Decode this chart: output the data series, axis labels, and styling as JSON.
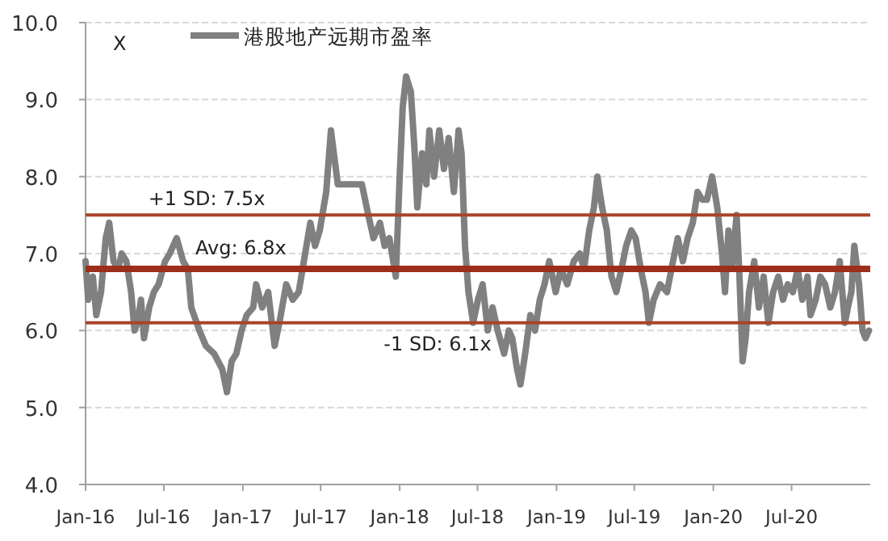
{
  "chart_data": {
    "type": "line",
    "ylabel": "X",
    "ylim": [
      4,
      10
    ],
    "yticks": [
      {
        "value": 4,
        "label": "4.0"
      },
      {
        "value": 5,
        "label": "5.0"
      },
      {
        "value": 6,
        "label": "6.0"
      },
      {
        "value": 7,
        "label": "7.0"
      },
      {
        "value": 8,
        "label": "8.0"
      },
      {
        "value": 9,
        "label": "9.0"
      },
      {
        "value": 10,
        "label": "10.0"
      }
    ],
    "xlim": [
      "2016-01-01",
      "2020-12-31"
    ],
    "xticks": [
      {
        "value": "2016-01-01",
        "label": "Jan-16"
      },
      {
        "value": "2016-07-01",
        "label": "Jul-16"
      },
      {
        "value": "2017-01-01",
        "label": "Jan-17"
      },
      {
        "value": "2017-07-01",
        "label": "Jul-17"
      },
      {
        "value": "2018-01-01",
        "label": "Jan-18"
      },
      {
        "value": "2018-07-01",
        "label": "Jul-18"
      },
      {
        "value": "2019-01-01",
        "label": "Jan-19"
      },
      {
        "value": "2019-07-01",
        "label": "Jul-19"
      },
      {
        "value": "2020-01-01",
        "label": "Jan-20"
      },
      {
        "value": "2020-07-01",
        "label": "Jul-20"
      }
    ],
    "grid": "y",
    "legend": "top",
    "marker": "none",
    "line_style": "solid",
    "ref_lines": [
      {
        "axis": "y",
        "value": 7.5,
        "label": "+1 SD: 7.5x",
        "color": "#a8442a"
      },
      {
        "axis": "y",
        "value": 6.8,
        "label": "Avg: 6.8x",
        "color": "#9c2f1a"
      },
      {
        "axis": "y",
        "value": 6.1,
        "label": "-1 SD: 6.1x",
        "color": "#a8442a"
      }
    ],
    "series": [
      {
        "name": "港股地产远期市盈率",
        "color": "#808080",
        "x": [
          "2016-01-01",
          "2016-01-07",
          "2016-01-18",
          "2016-01-26",
          "2016-02-06",
          "2016-02-17",
          "2016-02-25",
          "2016-03-06",
          "2016-03-17",
          "2016-03-25",
          "2016-04-05",
          "2016-04-16",
          "2016-04-24",
          "2016-05-01",
          "2016-05-09",
          "2016-05-16",
          "2016-05-28",
          "2016-06-08",
          "2016-06-19",
          "2016-07-04",
          "2016-07-15",
          "2016-07-31",
          "2016-08-15",
          "2016-08-26",
          "2016-09-03",
          "2016-09-22",
          "2016-10-07",
          "2016-10-26",
          "2016-11-14",
          "2016-11-25",
          "2016-12-06",
          "2016-12-17",
          "2016-12-29",
          "2017-01-10",
          "2017-01-25",
          "2017-02-01",
          "2017-02-15",
          "2017-03-01",
          "2017-03-16",
          "2017-03-27",
          "2017-04-12",
          "2017-04-27",
          "2017-05-11",
          "2017-05-26",
          "2017-06-07",
          "2017-06-18",
          "2017-06-29",
          "2017-07-14",
          "2017-07-25",
          "2017-08-10",
          "2017-08-21",
          "2017-09-17",
          "2017-10-05",
          "2017-10-20",
          "2017-11-01",
          "2017-11-16",
          "2017-11-27",
          "2017-12-08",
          "2017-12-23",
          "2018-01-01",
          "2018-01-08",
          "2018-01-16",
          "2018-01-27",
          "2018-02-04",
          "2018-02-11",
          "2018-02-22",
          "2018-03-04",
          "2018-03-11",
          "2018-03-22",
          "2018-04-03",
          "2018-04-14",
          "2018-04-25",
          "2018-05-07",
          "2018-05-18",
          "2018-05-25",
          "2018-06-02",
          "2018-06-10",
          "2018-06-21",
          "2018-07-02",
          "2018-07-13",
          "2018-07-25",
          "2018-08-05",
          "2018-08-17",
          "2018-09-01",
          "2018-09-12",
          "2018-09-20",
          "2018-10-01",
          "2018-10-09",
          "2018-10-20",
          "2018-11-01",
          "2018-11-12",
          "2018-11-23",
          "2018-12-04",
          "2018-12-15",
          "2018-12-30",
          "2019-01-11",
          "2019-01-26",
          "2019-02-10",
          "2019-02-24",
          "2019-03-06",
          "2019-03-18",
          "2019-03-29",
          "2019-04-06",
          "2019-04-17",
          "2019-04-28",
          "2019-05-09",
          "2019-05-20",
          "2019-06-01",
          "2019-06-12",
          "2019-06-24",
          "2019-07-04",
          "2019-07-16",
          "2019-07-27",
          "2019-08-04",
          "2019-08-15",
          "2019-08-30",
          "2019-09-15",
          "2019-09-29",
          "2019-10-10",
          "2019-10-22",
          "2019-11-02",
          "2019-11-14",
          "2019-11-25",
          "2019-12-06",
          "2019-12-17",
          "2019-12-29",
          "2020-01-10",
          "2020-01-21",
          "2020-01-28",
          "2020-02-05",
          "2020-02-13",
          "2020-02-24",
          "2020-03-01",
          "2020-03-09",
          "2020-03-16",
          "2020-03-24",
          "2020-04-05",
          "2020-04-16",
          "2020-04-27",
          "2020-05-08",
          "2020-05-19",
          "2020-05-31",
          "2020-06-11",
          "2020-06-22",
          "2020-07-04",
          "2020-07-15",
          "2020-07-26",
          "2020-08-07",
          "2020-08-14",
          "2020-08-26",
          "2020-09-06",
          "2020-09-17",
          "2020-09-29",
          "2020-10-10",
          "2020-10-21",
          "2020-11-02",
          "2020-11-09",
          "2020-11-17",
          "2020-11-24",
          "2020-12-05",
          "2020-12-13",
          "2020-12-20",
          "2020-12-28"
        ],
        "values": [
          6.9,
          6.4,
          6.7,
          6.2,
          6.5,
          7.2,
          7.4,
          6.9,
          6.8,
          7.0,
          6.9,
          6.5,
          6.0,
          6.1,
          6.4,
          5.9,
          6.3,
          6.5,
          6.6,
          6.9,
          7.0,
          7.2,
          6.9,
          6.8,
          6.3,
          6.0,
          5.8,
          5.7,
          5.5,
          5.2,
          5.6,
          5.7,
          6.0,
          6.2,
          6.3,
          6.6,
          6.3,
          6.5,
          5.8,
          6.1,
          6.6,
          6.4,
          6.5,
          7.0,
          7.4,
          7.1,
          7.3,
          7.8,
          8.6,
          7.9,
          7.9,
          7.9,
          7.9,
          7.5,
          7.2,
          7.4,
          7.1,
          7.2,
          6.7,
          8.0,
          8.9,
          9.3,
          9.1,
          8.4,
          7.6,
          8.3,
          7.9,
          8.6,
          8.0,
          8.6,
          8.1,
          8.5,
          7.8,
          8.6,
          8.3,
          7.1,
          6.5,
          6.1,
          6.4,
          6.6,
          6.0,
          6.3,
          6.0,
          5.7,
          6.0,
          5.9,
          5.5,
          5.3,
          5.7,
          6.2,
          6.0,
          6.4,
          6.6,
          6.9,
          6.5,
          6.8,
          6.6,
          6.9,
          7.0,
          6.8,
          7.3,
          7.6,
          8.0,
          7.6,
          7.3,
          6.7,
          6.5,
          6.8,
          7.1,
          7.3,
          7.2,
          6.8,
          6.5,
          6.1,
          6.4,
          6.6,
          6.5,
          6.9,
          7.2,
          6.9,
          7.2,
          7.4,
          7.8,
          7.7,
          7.7,
          8.0,
          7.6,
          7.0,
          6.5,
          7.3,
          6.8,
          7.5,
          6.8,
          5.6,
          5.9,
          6.5,
          6.9,
          6.3,
          6.7,
          6.1,
          6.5,
          6.7,
          6.4,
          6.6,
          6.5,
          6.8,
          6.4,
          6.7,
          6.2,
          6.4,
          6.7,
          6.6,
          6.3,
          6.5,
          6.9,
          6.1,
          6.3,
          6.5,
          7.1,
          6.6,
          6.0,
          5.9,
          6.0
        ]
      }
    ]
  }
}
